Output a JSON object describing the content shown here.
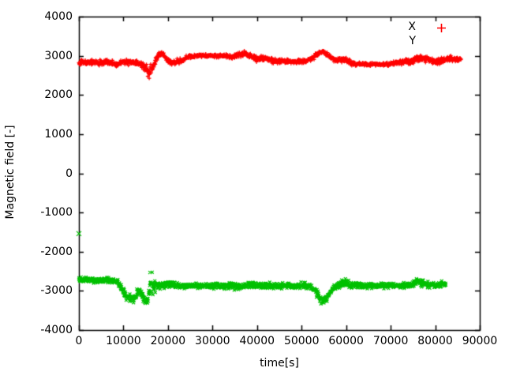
{
  "page": {
    "background": "#ffffff",
    "text_color": "#000000"
  },
  "chart_data": {
    "type": "scatter",
    "xlabel": "time[s]",
    "ylabel": "Magnetic field [-]",
    "xlim": [
      0,
      90000
    ],
    "ylim": [
      -4000,
      4000
    ],
    "xticks": [
      0,
      10000,
      20000,
      30000,
      40000,
      50000,
      60000,
      70000,
      80000,
      90000
    ],
    "yticks": [
      -4000,
      -3000,
      -2000,
      -1000,
      0,
      1000,
      2000,
      3000,
      4000
    ],
    "grid": false,
    "border": true,
    "tick_style": "inward-mirrored",
    "axis_color": "#000000",
    "legend": {
      "position": "top-right-inside",
      "items": [
        {
          "label": "X",
          "marker": "plus",
          "color": "#ff0000",
          "sample_visible": true
        },
        {
          "label": "Y",
          "marker": "cross",
          "color": "#00c000",
          "sample_visible": false
        }
      ]
    },
    "series": [
      {
        "name": "X",
        "marker": "plus",
        "color": "#ff0000",
        "t_step": 55,
        "trend": [
          [
            0,
            2810,
            85
          ],
          [
            2500,
            2840,
            85
          ],
          [
            5000,
            2820,
            80
          ],
          [
            7000,
            2835,
            80
          ],
          [
            8500,
            2780,
            75
          ],
          [
            10000,
            2855,
            80
          ],
          [
            12000,
            2830,
            80
          ],
          [
            14000,
            2790,
            90
          ],
          [
            15200,
            2640,
            170
          ],
          [
            16000,
            2560,
            190
          ],
          [
            16800,
            2760,
            120
          ],
          [
            17800,
            3010,
            80
          ],
          [
            18600,
            3070,
            70
          ],
          [
            19600,
            2940,
            80
          ],
          [
            20400,
            2850,
            85
          ],
          [
            21500,
            2820,
            80
          ],
          [
            23000,
            2900,
            70
          ],
          [
            25000,
            2985,
            55
          ],
          [
            27000,
            3000,
            50
          ],
          [
            30000,
            3000,
            50
          ],
          [
            33000,
            3005,
            55
          ],
          [
            34500,
            2960,
            65
          ],
          [
            36000,
            3025,
            80
          ],
          [
            37500,
            3050,
            90
          ],
          [
            38500,
            2980,
            85
          ],
          [
            40000,
            2925,
            95
          ],
          [
            41500,
            2950,
            85
          ],
          [
            43000,
            2880,
            80
          ],
          [
            45000,
            2855,
            75
          ],
          [
            47000,
            2860,
            70
          ],
          [
            49000,
            2845,
            70
          ],
          [
            51000,
            2865,
            70
          ],
          [
            52500,
            2945,
            75
          ],
          [
            54000,
            3080,
            70
          ],
          [
            54800,
            3110,
            65
          ],
          [
            56000,
            3000,
            75
          ],
          [
            57500,
            2885,
            75
          ],
          [
            59000,
            2905,
            100
          ],
          [
            60500,
            2845,
            75
          ],
          [
            62000,
            2790,
            50
          ],
          [
            65000,
            2780,
            45
          ],
          [
            68000,
            2780,
            45
          ],
          [
            70000,
            2790,
            50
          ],
          [
            71500,
            2830,
            70
          ],
          [
            73000,
            2860,
            75
          ],
          [
            74500,
            2850,
            85
          ],
          [
            76000,
            2920,
            110
          ],
          [
            77500,
            2940,
            110
          ],
          [
            79000,
            2870,
            85
          ],
          [
            80500,
            2850,
            80
          ],
          [
            82000,
            2900,
            85
          ],
          [
            83500,
            2930,
            80
          ],
          [
            85000,
            2900,
            70
          ],
          [
            85800,
            2910,
            60
          ]
        ],
        "outliers": []
      },
      {
        "name": "Y",
        "marker": "cross",
        "color": "#00c000",
        "t_step": 55,
        "trend": [
          [
            0,
            -2720,
            85
          ],
          [
            3000,
            -2715,
            80
          ],
          [
            6000,
            -2725,
            80
          ],
          [
            8500,
            -2740,
            85
          ],
          [
            9500,
            -2890,
            110
          ],
          [
            10500,
            -3120,
            120
          ],
          [
            11500,
            -3180,
            120
          ],
          [
            12300,
            -3230,
            110
          ],
          [
            13000,
            -3080,
            120
          ],
          [
            13800,
            -3020,
            120
          ],
          [
            14500,
            -3180,
            130
          ],
          [
            15300,
            -3290,
            120
          ],
          [
            15900,
            -2880,
            460
          ],
          [
            16600,
            -2840,
            420
          ],
          [
            17300,
            -2860,
            110
          ],
          [
            18500,
            -2870,
            95
          ],
          [
            20000,
            -2825,
            95
          ],
          [
            22000,
            -2860,
            85
          ],
          [
            25000,
            -2870,
            80
          ],
          [
            28000,
            -2862,
            80
          ],
          [
            31000,
            -2872,
            85
          ],
          [
            34000,
            -2880,
            95
          ],
          [
            36000,
            -2900,
            105
          ],
          [
            38000,
            -2870,
            85
          ],
          [
            40000,
            -2862,
            95
          ],
          [
            42000,
            -2872,
            85
          ],
          [
            45000,
            -2870,
            80
          ],
          [
            48000,
            -2870,
            80
          ],
          [
            50000,
            -2862,
            80
          ],
          [
            52000,
            -2880,
            85
          ],
          [
            53200,
            -3010,
            110
          ],
          [
            54300,
            -3220,
            110
          ],
          [
            55000,
            -3265,
            95
          ],
          [
            55800,
            -3150,
            110
          ],
          [
            56800,
            -2955,
            95
          ],
          [
            57800,
            -2872,
            85
          ],
          [
            59000,
            -2830,
            120
          ],
          [
            60000,
            -2790,
            150
          ],
          [
            61000,
            -2852,
            95
          ],
          [
            63000,
            -2870,
            80
          ],
          [
            66000,
            -2870,
            75
          ],
          [
            69000,
            -2870,
            80
          ],
          [
            72000,
            -2870,
            80
          ],
          [
            74500,
            -2850,
            85
          ],
          [
            76000,
            -2760,
            120
          ],
          [
            77000,
            -2792,
            110
          ],
          [
            78500,
            -2850,
            85
          ],
          [
            80000,
            -2862,
            80
          ],
          [
            81500,
            -2830,
            85
          ],
          [
            82400,
            -2810,
            80
          ]
        ],
        "outliers": [
          [
            0,
            -1540
          ]
        ]
      }
    ]
  }
}
